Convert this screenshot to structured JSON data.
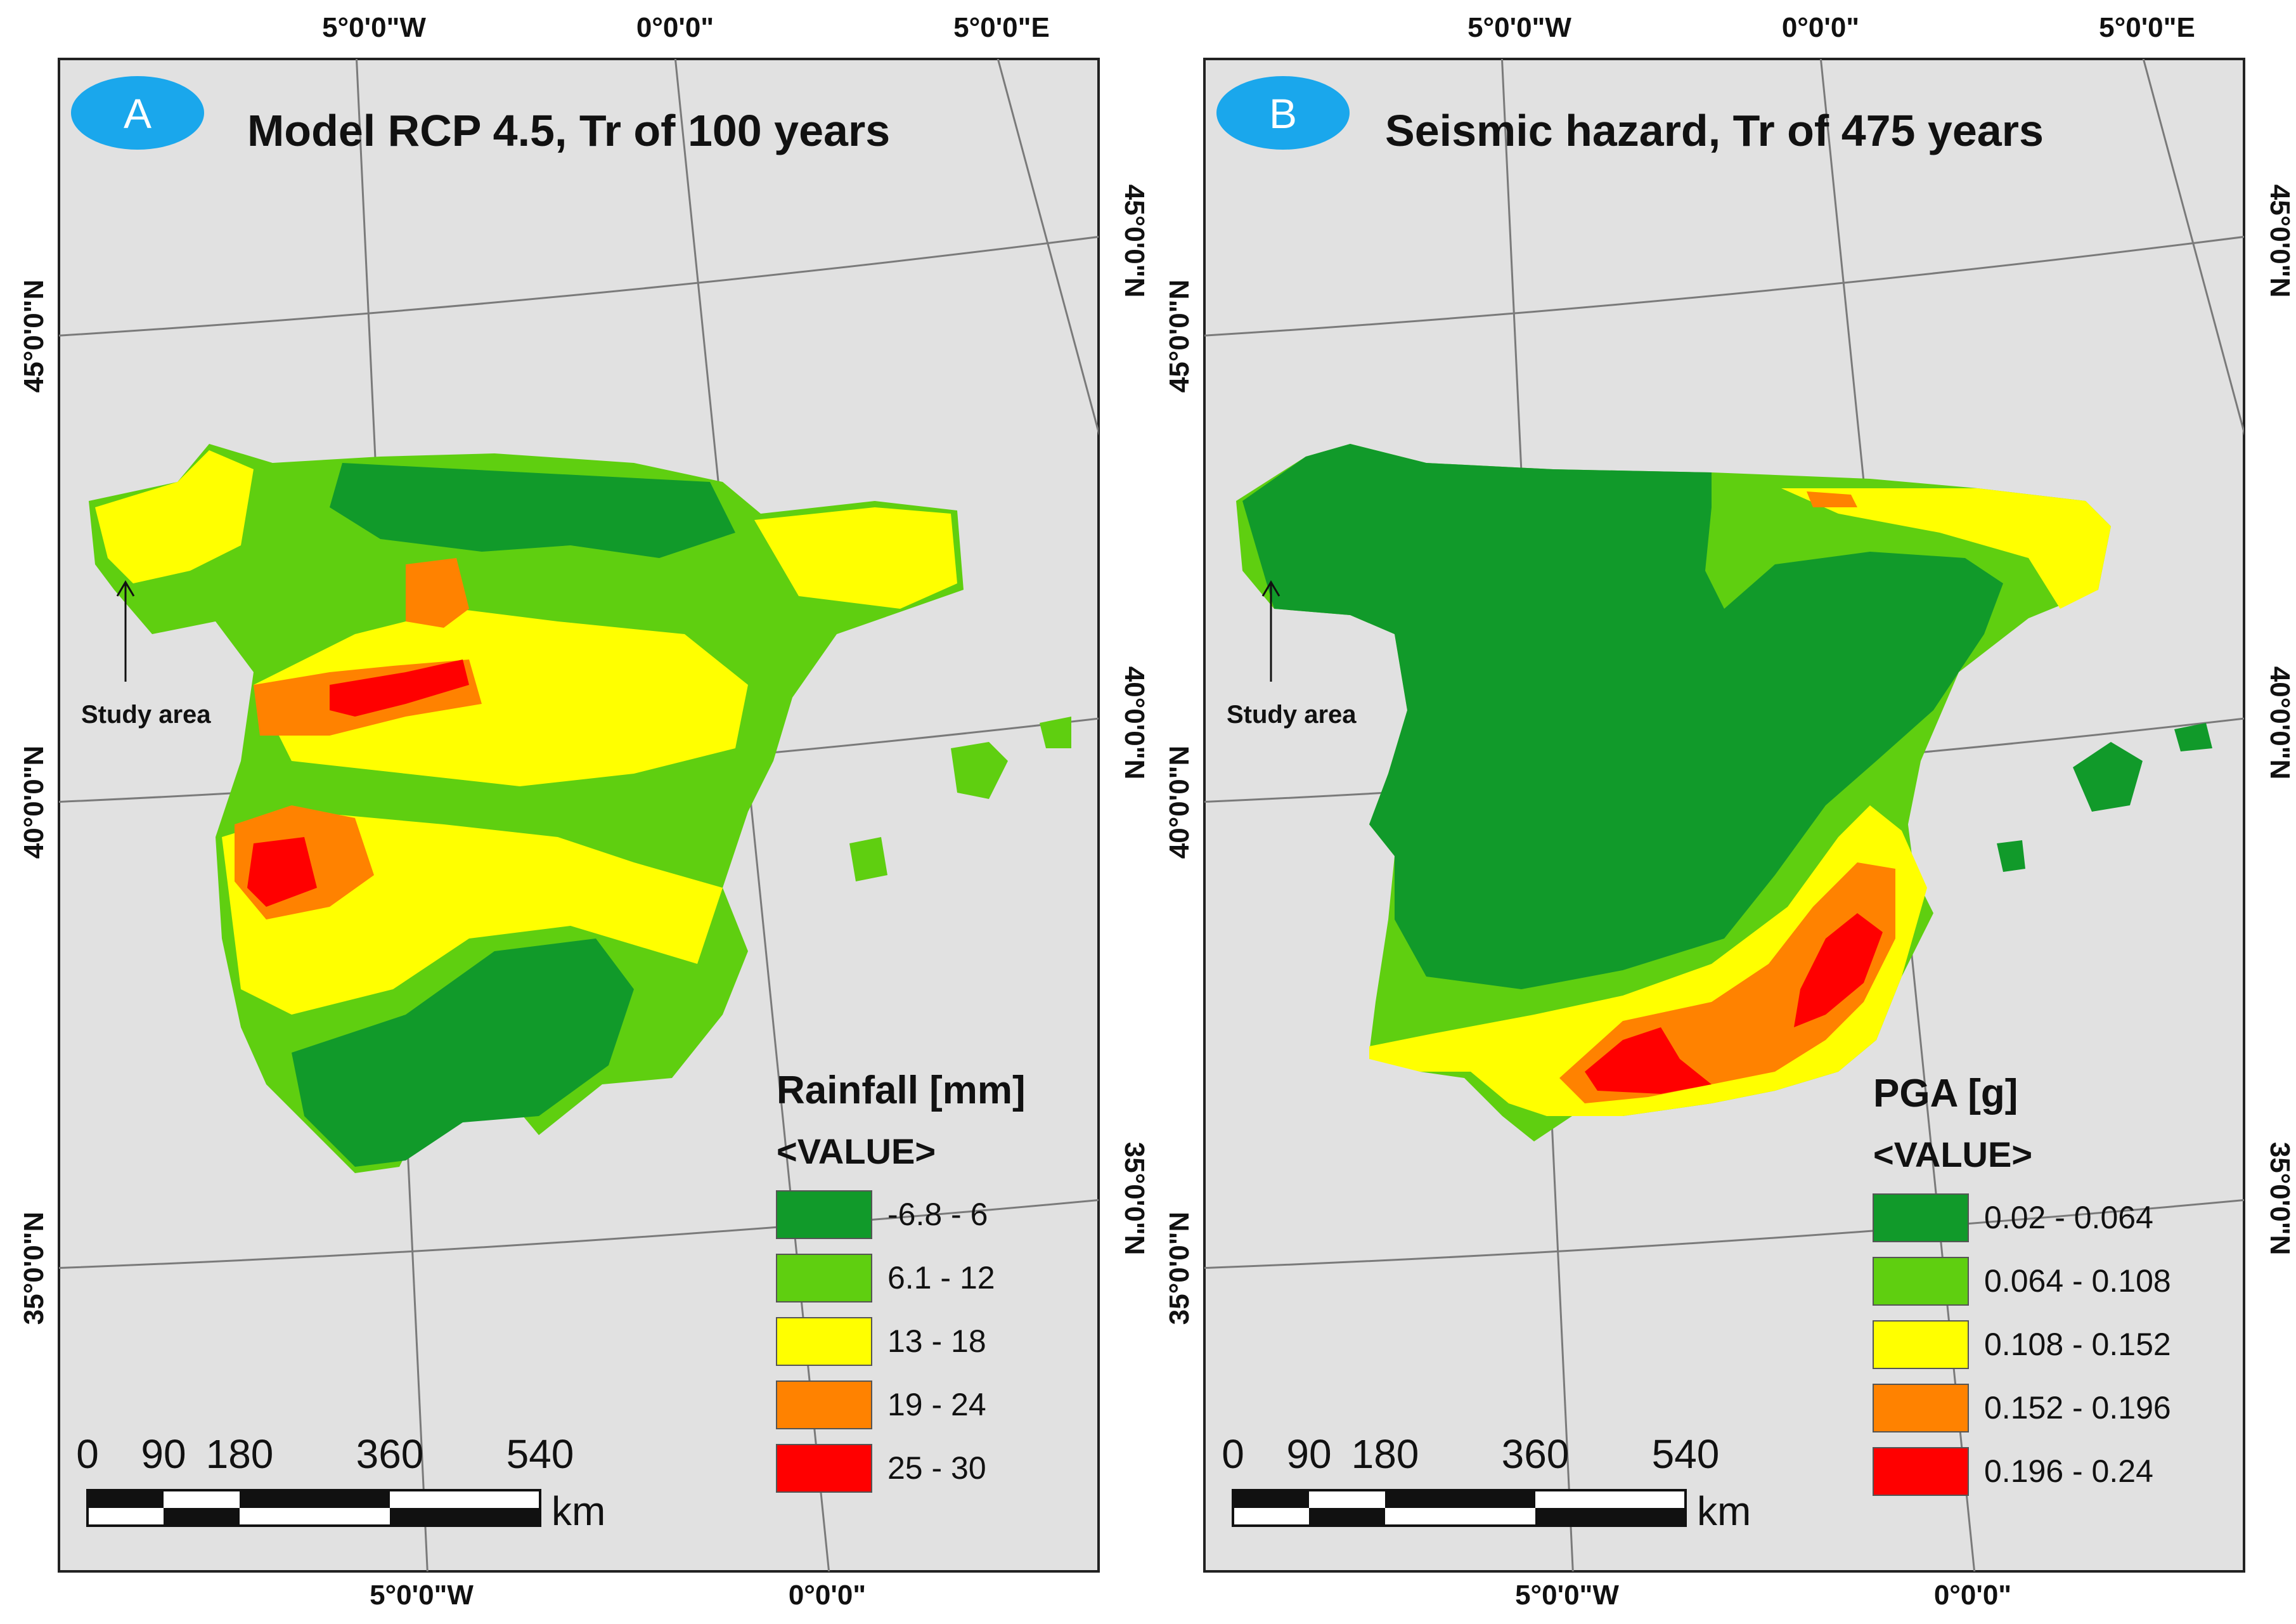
{
  "colors": {
    "background": "#e1e1e1",
    "border": "#222222",
    "graticule": "#7a7a7a",
    "badge": "#1aa7ec",
    "class1": "#119a2a",
    "class2": "#5fcf10",
    "class3": "#ffff00",
    "class4": "#ff8200",
    "class5": "#ff0000"
  },
  "panels": [
    {
      "badge": "A",
      "title": "Model RCP 4.5, Tr of 100 years",
      "legend_title": "Rainfall [mm]",
      "legend_subtitle": "<VALUE>",
      "legend_items": [
        "-6.8 - 6",
        "6.1 - 12",
        "13 - 18",
        "19 - 24",
        "25 - 30"
      ],
      "scale_labels": [
        "0",
        "90",
        "180",
        "360",
        "540"
      ],
      "scale_unit": "km",
      "study_area": "Study area",
      "top_labels": [
        "5°0'0\"W",
        "0°0'0\"",
        "5°0'0\"E"
      ],
      "bottom_labels": [
        "5°0'0\"W",
        "0°0'0\""
      ],
      "left_labels": [
        "45°0'0\"N",
        "40°0'0\"N",
        "35°0'0\"N"
      ],
      "right_labels": [
        "45°0'0\"N",
        "40°0'0\"N",
        "35°0'0\"N"
      ]
    },
    {
      "badge": "B",
      "title": "Seismic hazard, Tr of 475 years",
      "legend_title": "PGA [g]",
      "legend_subtitle": "<VALUE>",
      "legend_items": [
        "0.02 - 0.064",
        "0.064 - 0.108",
        "0.108 - 0.152",
        "0.152 - 0.196",
        "0.196 - 0.24"
      ],
      "scale_labels": [
        "0",
        "90",
        "180",
        "360",
        "540"
      ],
      "scale_unit": "km",
      "study_area": "Study area",
      "top_labels": [
        "5°0'0\"W",
        "0°0'0\"",
        "5°0'0\"E"
      ],
      "bottom_labels": [
        "5°0'0\"W",
        "0°0'0\""
      ],
      "left_labels": [
        "45°0'0\"N",
        "40°0'0\"N",
        "35°0'0\"N"
      ],
      "right_labels": [
        "45°0'0\"N",
        "40°0'0\"N",
        "35°0'0\"N"
      ]
    }
  ]
}
